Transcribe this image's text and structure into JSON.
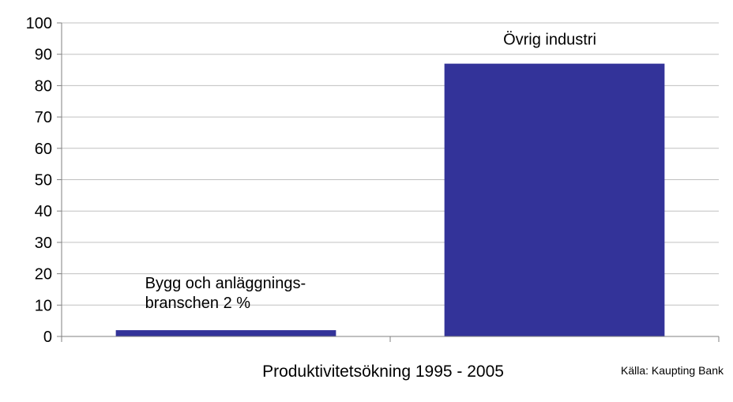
{
  "chart_data": {
    "type": "bar",
    "categories": [
      "Bygg och anläggnings-branschen 2 %",
      "Övrig industri"
    ],
    "values": [
      2,
      87
    ],
    "bar_labels": [
      [
        "Bygg och anläggnings-",
        "branschen 2 %"
      ],
      [
        "Övrig industri"
      ]
    ],
    "xlabel": "Produktivitetsökning 1995 - 2005",
    "ylabel": "",
    "ylim": [
      0,
      100
    ],
    "yticks": [
      0,
      10,
      20,
      30,
      40,
      50,
      60,
      70,
      80,
      90,
      100
    ],
    "grid": true,
    "legend": "none",
    "bar_color": "#333399",
    "grid_color": "#c0c0c0",
    "source": "Källa: Kaupting Bank"
  }
}
